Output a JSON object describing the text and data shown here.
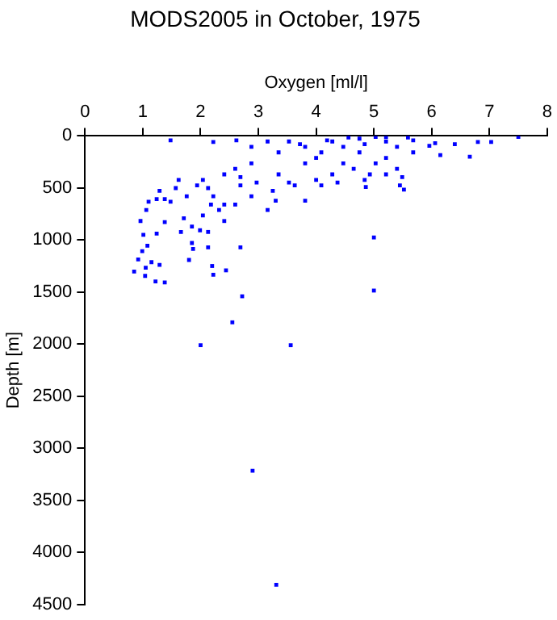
{
  "chart_data": {
    "type": "scatter",
    "title": "MODS2005 in October, 1975",
    "xlabel": "Oxygen [ml/l]",
    "ylabel": "Depth [m]",
    "xlim": [
      0,
      8
    ],
    "xticks": [
      0,
      1,
      2,
      3,
      4,
      5,
      6,
      7,
      8
    ],
    "ylim": [
      4500,
      0
    ],
    "yticks": [
      0,
      500,
      1000,
      1500,
      2000,
      2500,
      3000,
      3500,
      4000,
      4500
    ],
    "grid": false,
    "marker": "square",
    "series": [
      {
        "color": "#0000ff",
        "x": [
          1.48,
          2.22,
          2.62,
          7.5,
          7.03,
          6.8,
          6.66,
          6.4,
          6.15,
          6.06,
          5.52,
          5.45,
          4.86,
          3.81,
          3.3,
          3.16,
          2.69,
          2.44,
          2.22,
          2.2,
          2.13,
          1.87,
          1.8,
          1.38,
          1.29,
          1.24,
          0.96,
          1.05,
          0.85,
          1.04,
          1.22,
          1.38,
          0.99,
          1.08,
          1.1,
          1.29,
          1.62,
          2.04,
          2.41,
          2.88,
          3.35,
          3.81,
          4.28,
          4.75,
          5.21,
          5.68,
          5.4,
          5.03,
          4.65,
          4.28,
          4.0,
          3.63,
          3.25,
          2.88,
          2.6,
          2.32,
          2.04,
          1.85,
          1.66,
          1.85,
          2.13,
          2.41,
          1.76,
          1.48,
          1.06,
          1.01,
          1.15,
          0.92,
          3.81,
          4.75,
          5.68,
          5.4,
          5.96,
          2.88,
          3.16,
          3.53,
          4.0,
          4.47,
          3.35,
          2.69,
          2.22,
          1.94,
          2.6,
          4.93,
          5.21,
          4.47,
          4.09,
          4.84,
          5.21,
          5.59,
          5.03,
          4.56,
          4.19,
          3.72,
          2.69,
          2.13,
          1.57,
          1.38,
          1.24,
          2.18,
          1.71,
          1.99,
          2.41,
          2.97,
          3.53,
          4.09,
          4.37,
          4.84,
          5.21,
          5.49,
          5.0,
          5.0,
          2.72,
          2.55,
          2.0,
          3.56,
          2.9,
          3.31
        ],
        "values": [
          42,
          58,
          42,
          10,
          58,
          58,
          200,
          79,
          184,
          69,
          516,
          474,
          490,
          622,
          622,
          711,
          1070,
          1291,
          1333,
          1249,
          1070,
          1086,
          1191,
          827,
          1238,
          938,
          817,
          1265,
          1302,
          1344,
          1397,
          1407,
          1107,
          1054,
          632,
          527,
          422,
          422,
          369,
          264,
          158,
          105,
          53,
          26,
          10,
          42,
          316,
          264,
          316,
          369,
          422,
          474,
          527,
          580,
          659,
          711,
          764,
          870,
          922,
          1028,
          922,
          817,
          580,
          632,
          711,
          949,
          1212,
          1186,
          264,
          158,
          158,
          105,
          95,
          105,
          53,
          53,
          211,
          264,
          369,
          474,
          580,
          474,
          316,
          369,
          211,
          105,
          158,
          79,
          53,
          16,
          10,
          16,
          42,
          79,
          395,
          501,
          501,
          606,
          606,
          659,
          790,
          906,
          659,
          448,
          448,
          474,
          448,
          422,
          369,
          395,
          975,
          1485,
          1540,
          1790,
          2010,
          2010,
          3215,
          4310
        ]
      }
    ]
  }
}
